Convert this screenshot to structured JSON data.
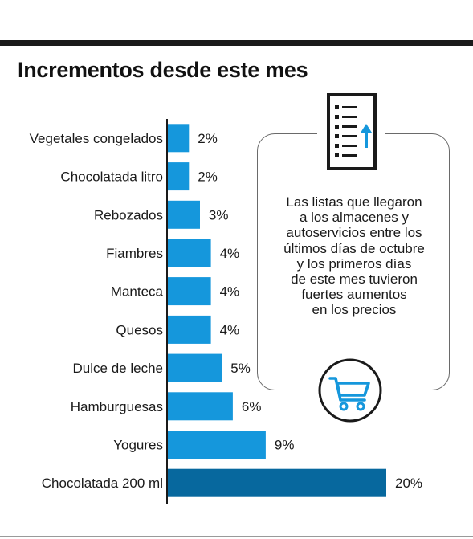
{
  "title": "Incrementos desde este mes",
  "info": {
    "text": "Las listas que llegaron\na los almacenes y\nautoservicios entre los\núltimos días de octubre\ny los primeros días\nde este mes tuvieron\nfuertes aumentos\nen los precios"
  },
  "icons": {
    "top": "list-arrow-up-icon",
    "bottom": "shopping-cart-icon"
  },
  "colors": {
    "bar": "#1597dc",
    "highlight": "#07689e",
    "icon_accent": "#1597dc",
    "text": "#1a1a1a"
  },
  "chart_data": {
    "type": "bar",
    "orientation": "horizontal",
    "categories": [
      "Vegetales congelados",
      "Chocolatada litro",
      "Rebozados",
      "Fiambres",
      "Manteca",
      "Quesos",
      "Dulce de leche",
      "Hamburguesas",
      "Yogures",
      "Chocolatada 200 ml"
    ],
    "values": [
      2,
      2,
      3,
      4,
      4,
      4,
      5,
      6,
      9,
      20
    ],
    "value_labels": [
      "2%",
      "2%",
      "3%",
      "4%",
      "4%",
      "4%",
      "5%",
      "6%",
      "9%",
      "20%"
    ],
    "highlighted_category": "Chocolatada 200 ml",
    "xlim": [
      0,
      20
    ]
  }
}
